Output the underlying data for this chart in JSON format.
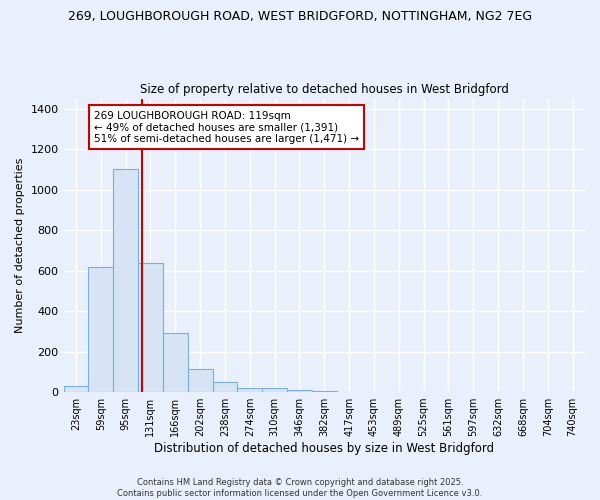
{
  "title_line1": "269, LOUGHBOROUGH ROAD, WEST BRIDGFORD, NOTTINGHAM, NG2 7EG",
  "title_line2": "Size of property relative to detached houses in West Bridgford",
  "xlabel": "Distribution of detached houses by size in West Bridgford",
  "ylabel": "Number of detached properties",
  "bin_labels": [
    "23sqm",
    "59sqm",
    "95sqm",
    "131sqm",
    "166sqm",
    "202sqm",
    "238sqm",
    "274sqm",
    "310sqm",
    "346sqm",
    "382sqm",
    "417sqm",
    "453sqm",
    "489sqm",
    "525sqm",
    "561sqm",
    "597sqm",
    "632sqm",
    "668sqm",
    "704sqm",
    "740sqm"
  ],
  "bar_values": [
    30,
    620,
    1100,
    640,
    290,
    115,
    48,
    20,
    20,
    12,
    5,
    0,
    0,
    0,
    0,
    0,
    0,
    0,
    0,
    0,
    0
  ],
  "bar_color": "#d6e4f5",
  "bar_edge_color": "#7ab0d8",
  "vline_color": "#cc0000",
  "vline_xdata": 2.67,
  "annotation_text": "269 LOUGHBOROUGH ROAD: 119sqm\n← 49% of detached houses are smaller (1,391)\n51% of semi-detached houses are larger (1,471) →",
  "annotation_box_color": "#ffffff",
  "annotation_box_edge_color": "#cc0000",
  "ylim": [
    0,
    1450
  ],
  "yticks": [
    0,
    200,
    400,
    600,
    800,
    1000,
    1200,
    1400
  ],
  "bg_color": "#eaf0fb",
  "grid_color": "#ffffff",
  "footnote": "Contains HM Land Registry data © Crown copyright and database right 2025.\nContains public sector information licensed under the Open Government Licence v3.0."
}
